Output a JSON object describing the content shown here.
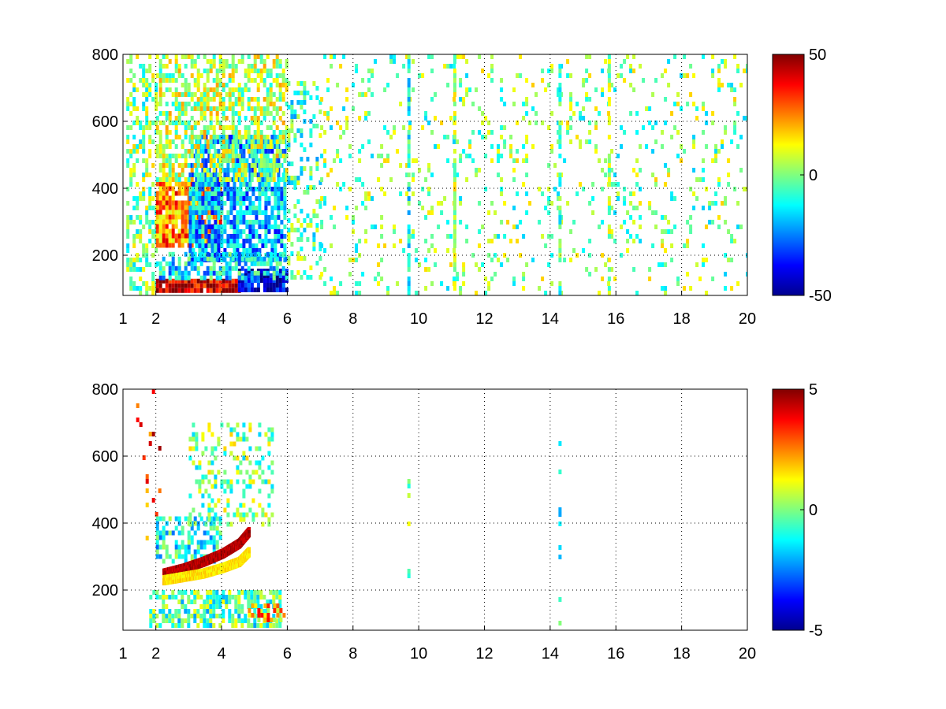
{
  "chart_data": [
    {
      "type": "heatmap",
      "title": "",
      "xlabel": "",
      "ylabel": "",
      "xlim": [
        1,
        20
      ],
      "ylim": [
        80,
        800
      ],
      "xticks": [
        1,
        2,
        4,
        6,
        8,
        10,
        12,
        14,
        16,
        18,
        20
      ],
      "yticks": [
        200,
        400,
        600,
        800
      ],
      "grid": true,
      "colormap": "jet",
      "clim": [
        -50,
        50
      ],
      "colorbar_ticks": [
        50,
        0,
        -50
      ],
      "regions": [
        {
          "x": [
            1.1,
            2.0
          ],
          "y": [
            80,
            800
          ],
          "value": 0,
          "density": 0.45
        },
        {
          "x": [
            2.0,
            4.0
          ],
          "y": [
            230,
            420
          ],
          "value": 25,
          "density": 0.9
        },
        {
          "x": [
            3.0,
            5.9
          ],
          "y": [
            180,
            560
          ],
          "value": -20,
          "density": 0.8
        },
        {
          "x": [
            2.0,
            6.0
          ],
          "y": [
            420,
            800
          ],
          "value": 5,
          "density": 0.55
        },
        {
          "x": [
            2.0,
            4.5
          ],
          "y": [
            100,
            130
          ],
          "value": 45,
          "density": 0.95
        },
        {
          "x": [
            4.5,
            6.0
          ],
          "y": [
            100,
            160
          ],
          "value": -40,
          "density": 0.95
        },
        {
          "x": [
            2.0,
            6.0
          ],
          "y": [
            130,
            210
          ],
          "value": -15,
          "density": 0.6
        },
        {
          "x": [
            6.0,
            7.0
          ],
          "y": [
            140,
            720
          ],
          "value": -5,
          "density": 0.3
        },
        {
          "x": [
            7.0,
            20.0
          ],
          "y": [
            80,
            800
          ],
          "value": 0,
          "density": 0.12
        }
      ],
      "stripes": [
        {
          "x": 9.7,
          "value": -10
        },
        {
          "x": 11.1,
          "value": 5
        },
        {
          "x": 14.3,
          "value": -5
        },
        {
          "x": 15.8,
          "value": 3
        }
      ]
    },
    {
      "type": "heatmap",
      "title": "",
      "xlabel": "",
      "ylabel": "",
      "xlim": [
        1,
        20
      ],
      "ylim": [
        80,
        800
      ],
      "xticks": [
        1,
        2,
        4,
        6,
        8,
        10,
        12,
        14,
        16,
        18,
        20
      ],
      "yticks": [
        200,
        400,
        600,
        800
      ],
      "grid": true,
      "colormap": "jet",
      "clim": [
        -5,
        5
      ],
      "colorbar_ticks": [
        5,
        0,
        -5
      ],
      "regions": [
        {
          "x": [
            1.4,
            2.2
          ],
          "y": [
            350,
            800
          ],
          "value": 3,
          "density": 0.05
        },
        {
          "x": [
            2.0,
            4.0
          ],
          "y": [
            280,
            420
          ],
          "value": -1,
          "density": 0.55
        },
        {
          "x": [
            3.0,
            5.5
          ],
          "y": [
            400,
            700
          ],
          "value": 0,
          "density": 0.3
        },
        {
          "x": [
            1.8,
            5.8
          ],
          "y": [
            100,
            200
          ],
          "value": -0.5,
          "density": 0.65
        },
        {
          "x": [
            4.8,
            5.9
          ],
          "y": [
            110,
            160
          ],
          "value": 2,
          "density": 0.6
        }
      ],
      "curves": [
        {
          "x": [
            2.2,
            2.8,
            3.4,
            4.0,
            4.5,
            4.8
          ],
          "y": [
            255,
            270,
            290,
            315,
            345,
            380
          ],
          "value": 4.5
        },
        {
          "x": [
            2.2,
            2.8,
            3.4,
            4.0,
            4.5,
            4.8
          ],
          "y": [
            235,
            245,
            255,
            272,
            290,
            320
          ],
          "value": 1.5
        }
      ],
      "stripes": [
        {
          "x": 9.7,
          "value": 0
        },
        {
          "x": 14.3,
          "value": -1
        }
      ]
    }
  ]
}
